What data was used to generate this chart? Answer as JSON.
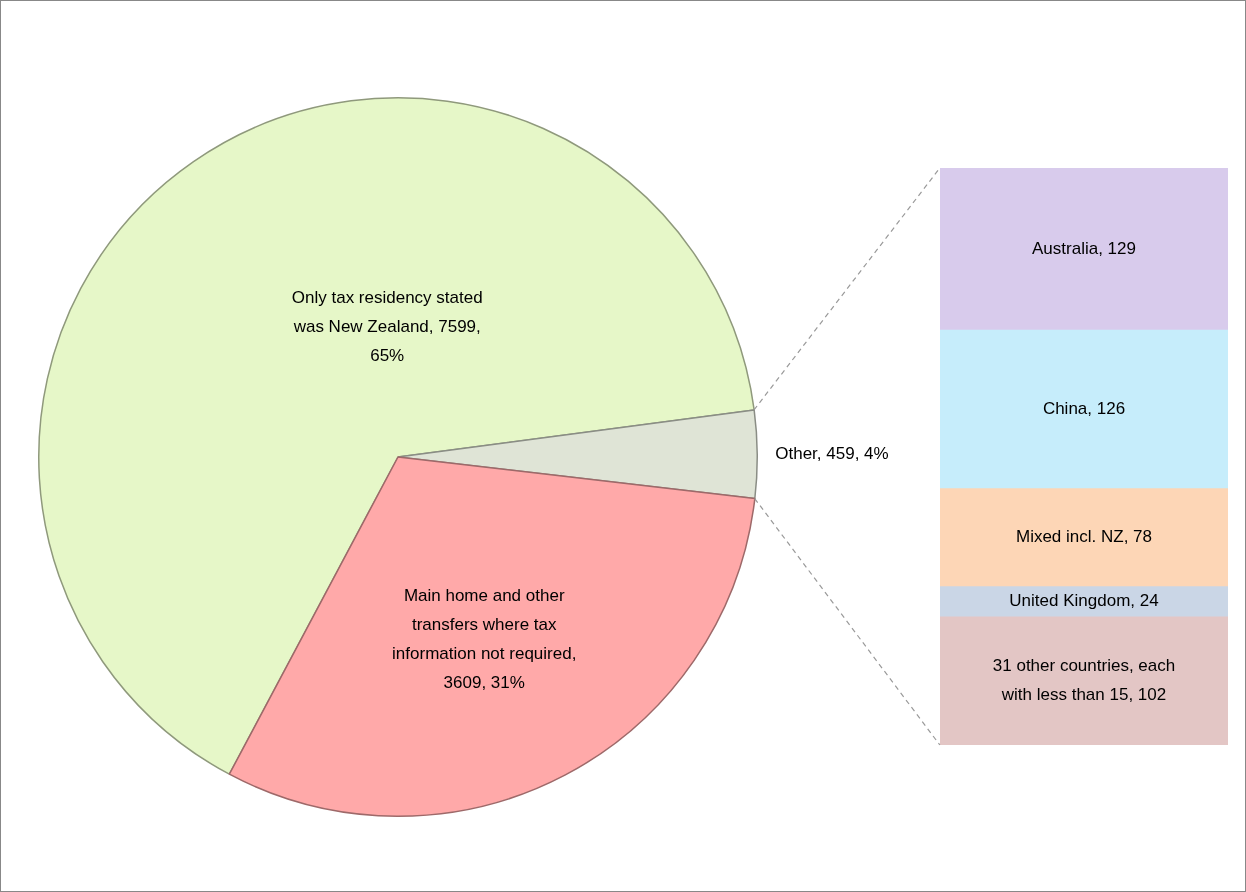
{
  "chart_data": [
    {
      "type": "pie",
      "categories": [
        "Only tax residency stated was New Zealand",
        "Other",
        "Main home and other transfers where tax information not required"
      ],
      "values": [
        7599,
        459,
        3609
      ],
      "colors": [
        "#e6f7c8",
        "#dfe4d6",
        "#ffa9a9"
      ],
      "value_labels": [
        ", 7599, 65%",
        ", 459, 4%",
        ", 3609, 31%"
      ],
      "legend": false
    },
    {
      "type": "bar",
      "stacked": true,
      "categories": [
        null
      ],
      "series": [
        {
          "name": "31 other countries, each with less than 15",
          "color": "#e3c6c5",
          "values": [
            102
          ],
          "value_labels": [
            ", 102"
          ]
        },
        {
          "name": "United Kingdom",
          "color": "#cad6e6",
          "values": [
            24
          ],
          "value_labels": [
            ", 24"
          ]
        },
        {
          "name": "Mixed incl. NZ",
          "color": "#fdd6b6",
          "values": [
            78
          ],
          "value_labels": [
            ", 78"
          ]
        },
        {
          "name": "China",
          "color": "#c6edfb",
          "values": [
            126
          ],
          "value_labels": [
            ", 126"
          ]
        },
        {
          "name": "Australia",
          "color": "#d8cbec",
          "values": [
            129
          ],
          "value_labels": [
            ", 129"
          ]
        }
      ],
      "tick_labels": false,
      "legend": false
    }
  ]
}
